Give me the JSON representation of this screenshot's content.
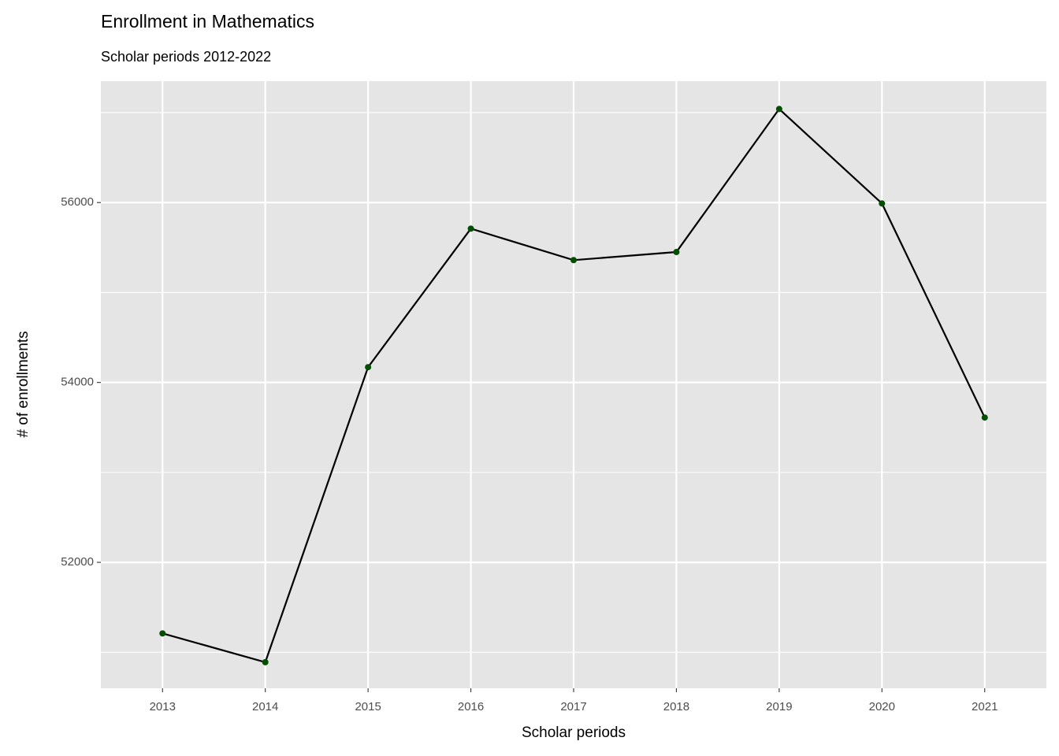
{
  "chart_data": {
    "type": "line",
    "title": "Enrollment in Mathematics",
    "subtitle": "Scholar periods 2012-2022",
    "x_label": "Scholar periods",
    "y_label": "# of enrollments",
    "x": [
      2013,
      2014,
      2015,
      2016,
      2017,
      2018,
      2019,
      2020,
      2021
    ],
    "series": [
      {
        "name": "Mathematics",
        "color": "#000000",
        "point_color": "#005000",
        "values": [
          51210,
          50890,
          54170,
          55710,
          55360,
          55450,
          57040,
          55990,
          53610
        ]
      }
    ],
    "xlim": [
      2012.4,
      2021.6
    ],
    "xticks": [
      2013,
      2014,
      2015,
      2016,
      2017,
      2018,
      2019,
      2020,
      2021
    ],
    "ylim": [
      50600,
      57350
    ],
    "yticks": [
      52000,
      54000,
      56000
    ],
    "y_minor_ticks": [
      51000,
      53000,
      55000,
      57000
    ],
    "grid": true
  }
}
